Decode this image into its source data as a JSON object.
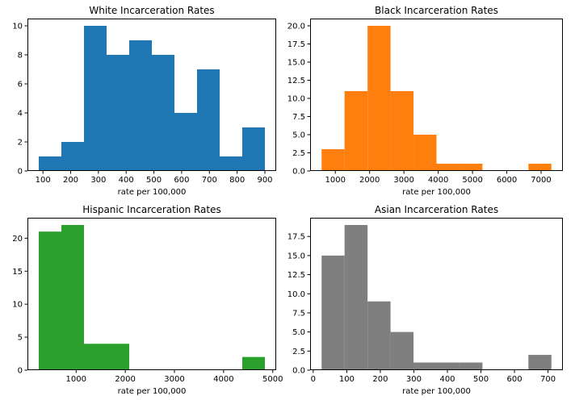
{
  "chart_data": [
    {
      "type": "bar",
      "title": "White Incarceration Rates",
      "xlabel": "rate per 100,000",
      "ylabel": "",
      "color": "#1f77b4",
      "bin_edges": [
        85,
        166.5,
        248,
        329.5,
        411,
        492.5,
        574,
        655.5,
        737,
        818.5,
        900
      ],
      "values": [
        1,
        2,
        10,
        8,
        9,
        8,
        4,
        7,
        1,
        3
      ],
      "xlim": [
        44.25,
        940.75
      ],
      "ylim": [
        0,
        10.5
      ],
      "xticks": [
        100,
        200,
        300,
        400,
        500,
        600,
        700,
        800,
        900
      ],
      "xtick_labels": [
        "100",
        "200",
        "300",
        "400",
        "500",
        "600",
        "700",
        "800",
        "900"
      ],
      "yticks": [
        0,
        2,
        4,
        6,
        8,
        10
      ],
      "ytick_labels": [
        "0",
        "2",
        "4",
        "6",
        "8",
        "10"
      ]
    },
    {
      "type": "bar",
      "title": "Black Incarceration Rates",
      "xlabel": "rate per 100,000",
      "ylabel": "",
      "color": "#ff7f0e",
      "bin_edges": [
        600,
        1270,
        1940,
        2610,
        3280,
        3950,
        4620,
        5290,
        5960,
        6630,
        7300
      ],
      "values": [
        3,
        11,
        20,
        11,
        5,
        1,
        1,
        0,
        0,
        1
      ],
      "xlim": [
        265,
        7635
      ],
      "ylim": [
        0,
        21
      ],
      "xticks": [
        1000,
        2000,
        3000,
        4000,
        5000,
        6000,
        7000
      ],
      "xtick_labels": [
        "1000",
        "2000",
        "3000",
        "4000",
        "5000",
        "6000",
        "7000"
      ],
      "yticks": [
        0,
        2.5,
        5,
        7.5,
        10,
        12.5,
        15,
        17.5,
        20
      ],
      "ytick_labels": [
        "0.0",
        "2.5",
        "5.0",
        "7.5",
        "10.0",
        "12.5",
        "15.0",
        "17.5",
        "20.0"
      ]
    },
    {
      "type": "bar",
      "title": "Hispanic Incarceration Rates",
      "xlabel": "rate per 100,000",
      "ylabel": "",
      "color": "#2ca02c",
      "bin_edges": [
        240,
        700,
        1160,
        1620,
        2080,
        2540,
        3000,
        3460,
        3920,
        4380,
        4840
      ],
      "values": [
        21,
        22,
        4,
        4,
        0,
        0,
        0,
        0,
        0,
        2
      ],
      "xlim": [
        10,
        5070
      ],
      "ylim": [
        0,
        23.1
      ],
      "xticks": [
        1000,
        2000,
        3000,
        4000,
        5000
      ],
      "xtick_labels": [
        "1000",
        "2000",
        "3000",
        "4000",
        "5000"
      ],
      "yticks": [
        0,
        5,
        10,
        15,
        20
      ],
      "ytick_labels": [
        "0",
        "5",
        "10",
        "15",
        "20"
      ]
    },
    {
      "type": "bar",
      "title": "Asian Incarceration Rates",
      "xlabel": "rate per 100,000",
      "ylabel": "",
      "color": "#7f7f7f",
      "bin_edges": [
        25,
        93.5,
        162,
        230.5,
        299,
        367.5,
        436,
        504.5,
        573,
        641.5,
        710
      ],
      "values": [
        15,
        19,
        9,
        5,
        1,
        1,
        1,
        0,
        0,
        2
      ],
      "xlim": [
        -9.25,
        744.25
      ],
      "ylim": [
        0,
        19.95
      ],
      "xticks": [
        0,
        100,
        200,
        300,
        400,
        500,
        600,
        700
      ],
      "xtick_labels": [
        "0",
        "100",
        "200",
        "300",
        "400",
        "500",
        "600",
        "700"
      ],
      "yticks": [
        0,
        2.5,
        5,
        7.5,
        10,
        12.5,
        15,
        17.5
      ],
      "ytick_labels": [
        "0.0",
        "2.5",
        "5.0",
        "7.5",
        "10.0",
        "12.5",
        "15.0",
        "17.5"
      ]
    }
  ]
}
